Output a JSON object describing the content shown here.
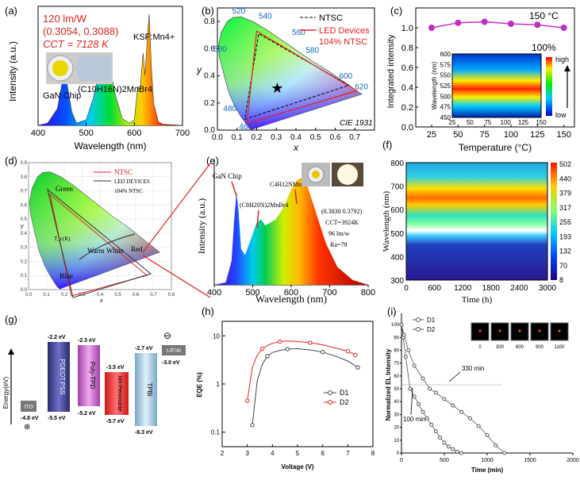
{
  "colors": {
    "red": "#e62020",
    "purple": "#c030c0",
    "navy": "#1a237e"
  },
  "panels": {
    "a": {
      "label": "(a)",
      "texts": [
        "120 lm/W",
        "(0.3054, 0.3088)",
        "CCT = 7128 K"
      ],
      "annotations": [
        "GaN Chip",
        "(C10H16N)2MnBr4",
        "KSF:Mn4+"
      ],
      "chart_data": {
        "type": "line",
        "xlabel": "Wavelength (nm)",
        "ylabel": "Intensity (a.u.)",
        "xlim": [
          400,
          700
        ],
        "xticks": [
          "400",
          "500",
          "600",
          "700"
        ],
        "x": [
          400,
          420,
          440,
          450,
          455,
          460,
          470,
          480,
          500,
          515,
          530,
          540,
          548,
          560,
          575,
          590,
          600,
          607,
          612,
          618,
          622,
          628,
          631,
          635,
          640,
          650,
          660,
          700
        ],
        "values": [
          0,
          0.02,
          0.15,
          0.38,
          0.45,
          0.38,
          0.12,
          0.02,
          0.05,
          0.25,
          0.55,
          0.42,
          0.55,
          0.28,
          0.06,
          0.02,
          0.05,
          0.35,
          0.32,
          0.65,
          0.45,
          0.85,
          1.0,
          0.55,
          0.2,
          0.03,
          0.01,
          0
        ]
      }
    },
    "b": {
      "label": "(b)",
      "legend": [
        "NTSC",
        "LED Devices",
        "104% NTSC"
      ],
      "corner": "CIE 1931",
      "chart_data": {
        "type": "scatter",
        "xlabel": "x",
        "ylabel": "y",
        "xlim": [
          0,
          0.8
        ],
        "ylim": [
          0,
          0.9
        ],
        "xticks": [
          "0.0",
          "0.1",
          "0.2",
          "0.3",
          "0.4",
          "0.5",
          "0.6",
          "0.7"
        ],
        "yticks": [
          "0.0",
          "0.2",
          "0.4",
          "0.6",
          "0.8"
        ],
        "wavelength_labels": [
          "520",
          "540",
          "560",
          "580",
          "600",
          "620",
          "500",
          "480",
          "460"
        ],
        "ntsc": [
          [
            0.67,
            0.33
          ],
          [
            0.21,
            0.71
          ],
          [
            0.14,
            0.08
          ]
        ],
        "led": [
          [
            0.71,
            0.29
          ],
          [
            0.2,
            0.73
          ],
          [
            0.15,
            0.05
          ]
        ],
        "star": [
          0.305,
          0.309
        ]
      }
    },
    "c": {
      "label": "(c)",
      "texts": [
        "150 °C",
        "100%"
      ],
      "chart_data": {
        "type": "line",
        "xlabel": "Temperature (°C)",
        "ylabel": "Integrated intensity",
        "xlim": [
          10,
          160
        ],
        "ylim": [
          0,
          1.2
        ],
        "x": [
          25,
          50,
          75,
          100,
          125,
          150
        ],
        "values": [
          1.0,
          1.05,
          1.06,
          1.04,
          1.03,
          1.0
        ],
        "xticks": [
          "25",
          "50",
          "75",
          "100",
          "125",
          "150"
        ],
        "yticks": [
          "0.0",
          "0.2",
          "0.4",
          "0.6",
          "0.8",
          "1.0"
        ],
        "inset": {
          "ylabel": "Wavelength (nm)",
          "yticks": [
            "600",
            "575",
            "550",
            "525",
            "500",
            "475",
            "450"
          ],
          "xticks": [
            "25",
            "50",
            "75",
            "100",
            "125",
            "150"
          ],
          "high": "high",
          "low": "low"
        }
      }
    },
    "d": {
      "label": "(d)",
      "legend": [
        "NTSC",
        "LED DEVICES",
        "104% NTSC"
      ],
      "annotations": [
        "Green",
        "Blue",
        "Red",
        "Warm White",
        "T_c(K)"
      ],
      "chart_data": {
        "type": "scatter",
        "xlabel": "x",
        "ylabel": "y",
        "xticks": [
          "0.0",
          "0.1",
          "0.2",
          "0.3",
          "0.4",
          "0.5",
          "0.6",
          "0.7",
          "0.8"
        ],
        "yticks": [
          "0.0",
          "0.1",
          "0.2",
          "0.3",
          "0.4",
          "0.5",
          "0.6",
          "0.7",
          "0.8",
          "0.9"
        ]
      }
    },
    "e": {
      "label": "(e)",
      "annotations": [
        "GaN Chip",
        "(C8H20N)2MnBr4",
        "C4H12NMnCl3"
      ],
      "info": [
        "(0.3830 0.3792)",
        "CCT=3924K",
        "96 lm/w",
        "Ra=79"
      ],
      "chart_data": {
        "type": "area",
        "xlabel": "Wavelength (nm)",
        "ylabel": "Intensity (a.u.)",
        "xlim": [
          400,
          800
        ],
        "xticks": [
          "400",
          "500",
          "600",
          "700",
          "800"
        ],
        "x": [
          400,
          430,
          445,
          452,
          458,
          463,
          470,
          480,
          495,
          510,
          522,
          532,
          545,
          560,
          580,
          600,
          615,
          628,
          640,
          660,
          690,
          720,
          760,
          800
        ],
        "values": [
          0,
          0.02,
          0.2,
          0.55,
          0.78,
          0.62,
          0.3,
          0.25,
          0.38,
          0.52,
          0.55,
          0.5,
          0.52,
          0.55,
          0.65,
          0.8,
          0.88,
          0.9,
          0.85,
          0.65,
          0.35,
          0.15,
          0.04,
          0
        ]
      }
    },
    "f": {
      "label": "(f)",
      "chart_data": {
        "type": "heatmap",
        "xlabel": "Time (h)",
        "ylabel": "Wavelength (nm)",
        "xticks": [
          "0",
          "600",
          "1200",
          "1800",
          "2400",
          "3000"
        ],
        "yticks": [
          "800",
          "700",
          "600",
          "500",
          "400",
          "300"
        ],
        "colorbar": [
          "502",
          "440",
          "379",
          "317",
          "255",
          "193",
          "132",
          "70",
          "8"
        ]
      }
    },
    "g": {
      "label": "(g)",
      "ylabel": "Energy(eV)",
      "layers": [
        {
          "name": "ITO",
          "top": "",
          "bottom": "-4.8 eV",
          "color": "#777777"
        },
        {
          "name": "PDEOT:PSS",
          "top": "-2.2 eV",
          "bottom": "-5.5 eV",
          "color": "#3f3f8f"
        },
        {
          "name": "Poly-TPD",
          "top": "-2.3 eV",
          "bottom": "-5.2 eV",
          "color": "#cc66cc"
        },
        {
          "name": "Mn-Perovskite",
          "top": "-3.5 eV",
          "bottom": "-5.7 eV",
          "color": "#ee3333"
        },
        {
          "name": "TPBi",
          "top": "-2.7 eV",
          "bottom": "-6.3 eV",
          "color": "#9fc3dc"
        },
        {
          "name": "LiF/Al",
          "top": "",
          "bottom": "-3.0 eV",
          "color": "#777777"
        }
      ],
      "symbols": [
        "⊕",
        "⊖"
      ]
    },
    "h": {
      "label": "(h)",
      "chart_data": {
        "type": "line",
        "xlabel": "Voltage (V)",
        "ylabel": "EQE (%)",
        "xlim": [
          2,
          8
        ],
        "ylim": [
          0.05,
          20
        ],
        "scale": "log",
        "xticks": [
          "2",
          "3",
          "4",
          "5",
          "6",
          "7",
          "8"
        ],
        "yticks": [
          "0.1",
          "1",
          "10"
        ],
        "series": [
          {
            "name": "D1",
            "x": [
              3.2,
              3.4,
              3.6,
              3.8,
              4.0,
              4.3,
              4.6,
              5.0,
              5.5,
              6.0,
              6.5,
              7.0,
              7.4
            ],
            "values": [
              0.14,
              1.2,
              2.6,
              3.8,
              4.5,
              5.0,
              5.3,
              5.4,
              5.1,
              4.6,
              3.8,
              3.0,
              2.2
            ]
          },
          {
            "name": "D2",
            "x": [
              3.0,
              3.2,
              3.4,
              3.6,
              3.8,
              4.0,
              4.3,
              4.6,
              5.0,
              5.5,
              6.0,
              6.5,
              7.0,
              7.3
            ],
            "values": [
              0.45,
              2.2,
              4.0,
              5.4,
              6.3,
              7.0,
              7.6,
              7.8,
              7.6,
              7.2,
              6.5,
              5.6,
              4.8,
              4.0
            ]
          }
        ]
      }
    },
    "i": {
      "label": "(i)",
      "annotations": [
        "330 min",
        "100 min"
      ],
      "inset_labels": [
        "0",
        "300",
        "600",
        "900",
        "1100"
      ],
      "chart_data": {
        "type": "line",
        "xlabel": "Time (min)",
        "ylabel": "Normalized EL Intensity",
        "xlim": [
          0,
          2000
        ],
        "ylim": [
          0,
          105
        ],
        "xticks": [
          "0",
          "500",
          "1000",
          "1500",
          "2000"
        ],
        "yticks": [
          "0",
          "10",
          "20",
          "30",
          "40",
          "50",
          "60",
          "70",
          "80",
          "90",
          "100"
        ],
        "series": [
          {
            "name": "D1",
            "x": [
              0,
              20,
              50,
              100,
              150,
              200,
              250,
              300,
              350,
              400,
              450,
              500,
              550,
              600,
              650,
              700
            ],
            "values": [
              100,
              90,
              75,
              50,
              44,
              38,
              32,
              27,
              22,
              17,
              12,
              8,
              5,
              3,
              1,
              0
            ]
          },
          {
            "name": "D2",
            "x": [
              0,
              30,
              80,
              150,
              250,
              330,
              400,
              500,
              600,
              700,
              800,
              900,
              1000,
              1100,
              1200
            ],
            "values": [
              100,
              92,
              80,
              68,
              58,
              50,
              47,
              42,
              37,
              32,
              27,
              21,
              14,
              6,
              0
            ]
          }
        ]
      }
    }
  }
}
